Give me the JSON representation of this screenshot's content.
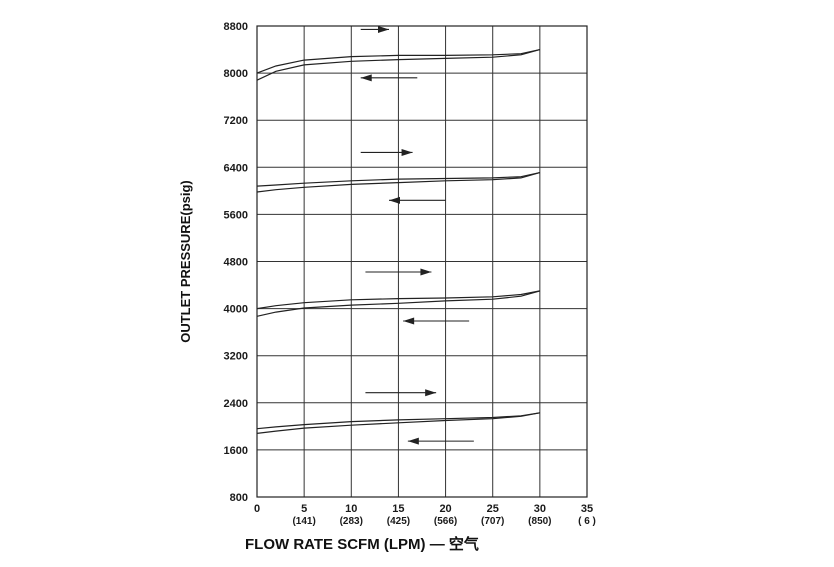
{
  "chart_data": {
    "type": "line",
    "xlabel": "FLOW RATE SCFM (LPM) — 空气",
    "ylabel": "OUTLET PRESSURE(psig)",
    "xlim": [
      0,
      35
    ],
    "ylim": [
      800,
      8800
    ],
    "x_ticks": [
      {
        "value": 0,
        "label": "0",
        "sub": ""
      },
      {
        "value": 5,
        "label": "5",
        "sub": "(141)"
      },
      {
        "value": 10,
        "label": "10",
        "sub": "(283)"
      },
      {
        "value": 15,
        "label": "15",
        "sub": "(425)"
      },
      {
        "value": 20,
        "label": "20",
        "sub": "(566)"
      },
      {
        "value": 25,
        "label": "25",
        "sub": "(707)"
      },
      {
        "value": 30,
        "label": "30",
        "sub": "(850)"
      },
      {
        "value": 35,
        "label": "35",
        "sub": "( 6 )"
      }
    ],
    "y_ticks": [
      {
        "value": 800,
        "label": "800"
      },
      {
        "value": 1600,
        "label": "1600"
      },
      {
        "value": 2400,
        "label": "2400"
      },
      {
        "value": 3200,
        "label": "3200"
      },
      {
        "value": 4000,
        "label": "4000"
      },
      {
        "value": 4800,
        "label": "4800"
      },
      {
        "value": 5600,
        "label": "5600"
      },
      {
        "value": 6400,
        "label": "6400"
      },
      {
        "value": 7200,
        "label": "7200"
      },
      {
        "value": 8000,
        "label": "8000"
      },
      {
        "value": 8800,
        "label": "8800"
      }
    ],
    "grid": true,
    "line_color": "#222222",
    "series": [
      {
        "increasing": {
          "x": [
            0,
            2,
            5,
            10,
            15,
            20,
            25,
            28,
            30
          ],
          "y": [
            8000,
            8120,
            8220,
            8280,
            8300,
            8300,
            8310,
            8330,
            8400
          ]
        },
        "decreasing": {
          "x": [
            0,
            2,
            5,
            10,
            15,
            20,
            25,
            28,
            30
          ],
          "y": [
            7880,
            8030,
            8140,
            8200,
            8230,
            8250,
            8270,
            8310,
            8400
          ]
        },
        "arrow_up": {
          "x": [
            11,
            14
          ]
        },
        "arrow_down": {
          "x": [
            17,
            11
          ]
        }
      },
      {
        "increasing": {
          "x": [
            0,
            2,
            5,
            10,
            15,
            20,
            25,
            28,
            30
          ],
          "y": [
            6080,
            6100,
            6130,
            6170,
            6200,
            6210,
            6220,
            6240,
            6310
          ]
        },
        "decreasing": {
          "x": [
            0,
            2,
            5,
            10,
            15,
            20,
            25,
            28,
            30
          ],
          "y": [
            5980,
            6020,
            6060,
            6110,
            6140,
            6170,
            6190,
            6220,
            6310
          ]
        },
        "arrow_up": {
          "x": [
            11,
            16.5
          ]
        },
        "arrow_down": {
          "x": [
            20,
            14
          ]
        }
      },
      {
        "increasing": {
          "x": [
            0,
            2,
            5,
            10,
            15,
            20,
            25,
            28,
            30
          ],
          "y": [
            4000,
            4050,
            4100,
            4150,
            4170,
            4180,
            4200,
            4240,
            4300
          ]
        },
        "decreasing": {
          "x": [
            0,
            2,
            5,
            10,
            15,
            20,
            25,
            28,
            30
          ],
          "y": [
            3870,
            3940,
            4010,
            4060,
            4090,
            4130,
            4160,
            4210,
            4300
          ]
        },
        "arrow_up": {
          "x": [
            11.5,
            18.5
          ]
        },
        "arrow_down": {
          "x": [
            22.5,
            15.5
          ]
        }
      },
      {
        "increasing": {
          "x": [
            0,
            2,
            5,
            10,
            15,
            20,
            25,
            28,
            30
          ],
          "y": [
            1960,
            1990,
            2030,
            2080,
            2110,
            2130,
            2150,
            2180,
            2230
          ]
        },
        "decreasing": {
          "x": [
            0,
            2,
            5,
            10,
            15,
            20,
            25,
            28,
            30
          ],
          "y": [
            1880,
            1920,
            1970,
            2020,
            2060,
            2100,
            2130,
            2170,
            2230
          ]
        },
        "arrow_up": {
          "x": [
            11.5,
            19
          ]
        },
        "arrow_down": {
          "x": [
            23,
            16
          ]
        }
      }
    ]
  }
}
